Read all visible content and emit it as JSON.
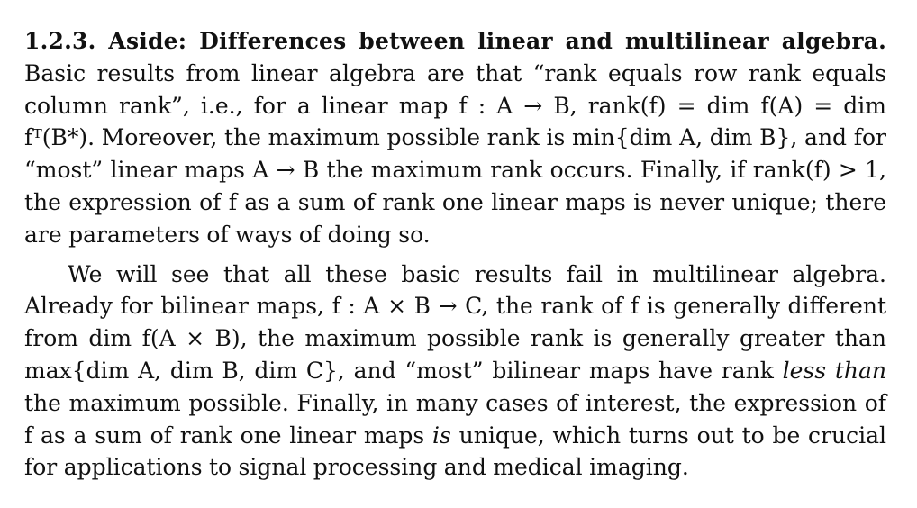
{
  "section": {
    "heading": "1.2.3. Aside: Differences between linear and multilinear algebra.",
    "para1": "Basic results from linear algebra are that “rank equals row rank equals column rank”, i.e., for a linear map f : A → B, rank(f) = dim f(A) = dim fᵀ(B*). Moreover, the maximum possible rank is min{dim A, dim B}, and for “most” linear maps A → B the maximum rank occurs. Finally, if rank(f) > 1, the expression of f as a sum of rank one linear maps is never unique; there are parameters of ways of doing so.",
    "para2_a": "We will see that all these basic results fail in multilinear algebra. Already for bilinear maps, f : A × B → C, the rank of f is generally different from dim f(A × B), the maximum possible rank is generally greater than max{dim A, dim B, dim C}, and “most” bilinear maps have rank ",
    "para2_em1": "less than",
    "para2_b": " the maximum possible. Finally, in many cases of interest, the expression of f as a sum of rank one linear maps ",
    "para2_em2": "is",
    "para2_c": " unique, which turns out to be crucial for applications to signal processing and medical imaging."
  }
}
